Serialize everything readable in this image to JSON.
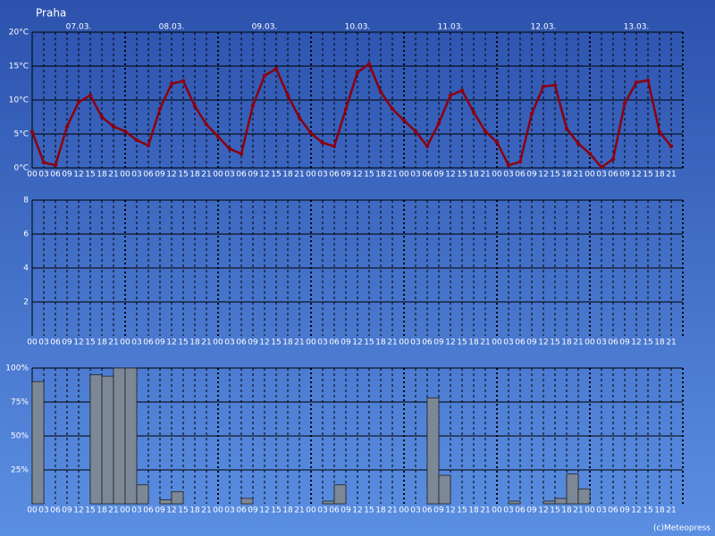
{
  "title": "Praha",
  "credit": "(c)Meteopress",
  "chart_data": [
    {
      "type": "line",
      "color": "#8b0010",
      "days": [
        "07.03.",
        "08.03.",
        "09.03.",
        "10.03.",
        "11.03.",
        "12.03.",
        "13.03."
      ],
      "categories": [
        "00",
        "03",
        "06",
        "09",
        "12",
        "15",
        "18",
        "21",
        "00",
        "03",
        "06",
        "09",
        "12",
        "15",
        "18",
        "21",
        "00",
        "03",
        "06",
        "09",
        "12",
        "15",
        "18",
        "21",
        "00",
        "03",
        "06",
        "09",
        "12",
        "15",
        "18",
        "21",
        "00",
        "03",
        "06",
        "09",
        "12",
        "15",
        "18",
        "21",
        "00",
        "03",
        "06",
        "09",
        "12",
        "15",
        "18",
        "21",
        "00",
        "03",
        "06",
        "09",
        "12",
        "15",
        "18",
        "21"
      ],
      "values": [
        5.3,
        0.8,
        0.4,
        6.1,
        9.7,
        10.7,
        7.5,
        6.1,
        5.4,
        4.1,
        3.3,
        8.7,
        12.4,
        12.8,
        9.1,
        6.4,
        4.6,
        2.8,
        2.1,
        9.2,
        13.6,
        14.6,
        10.7,
        7.4,
        5.1,
        3.7,
        3.2,
        8.7,
        14.1,
        15.3,
        11.2,
        8.7,
        7.0,
        5.4,
        3.2,
        6.6,
        10.7,
        11.4,
        8.2,
        5.4,
        3.8,
        0.4,
        0.9,
        8.0,
        12.0,
        12.2,
        5.8,
        3.6,
        2.1,
        0.1,
        1.3,
        9.5,
        12.6,
        12.9,
        5.3,
        3.2
      ],
      "ylim": [
        0,
        20
      ],
      "yticks": [
        {
          "value": 0,
          "label": "0°C"
        },
        {
          "value": 5,
          "label": "5°C"
        },
        {
          "value": 10,
          "label": "10°C"
        },
        {
          "value": 15,
          "label": "15°C"
        },
        {
          "value": 20,
          "label": "20°C"
        }
      ]
    },
    {
      "type": "bar",
      "categories": [
        "00",
        "03",
        "06",
        "09",
        "12",
        "15",
        "18",
        "21",
        "00",
        "03",
        "06",
        "09",
        "12",
        "15",
        "18",
        "21",
        "00",
        "03",
        "06",
        "09",
        "12",
        "15",
        "18",
        "21",
        "00",
        "03",
        "06",
        "09",
        "12",
        "15",
        "18",
        "21",
        "00",
        "03",
        "06",
        "09",
        "12",
        "15",
        "18",
        "21",
        "00",
        "03",
        "06",
        "09",
        "12",
        "15",
        "18",
        "21",
        "00",
        "03",
        "06",
        "09",
        "12",
        "15",
        "18",
        "21"
      ],
      "values": [
        0,
        0,
        0,
        0,
        0,
        0,
        0,
        0,
        0,
        0,
        0,
        0,
        0,
        0,
        0,
        0,
        0,
        0,
        0,
        0,
        0,
        0,
        0,
        0,
        0,
        0,
        0,
        0,
        0,
        0,
        0,
        0,
        0,
        0,
        0,
        0,
        0,
        0,
        0,
        0,
        0,
        0,
        0,
        0,
        0,
        0,
        0,
        0,
        0,
        0,
        0,
        0,
        0,
        0,
        0,
        0
      ],
      "ylim": [
        0,
        8
      ],
      "yticks": [
        2,
        4,
        6,
        8
      ]
    },
    {
      "type": "bar",
      "color": "#7d8897",
      "categories": [
        "00",
        "03",
        "06",
        "09",
        "12",
        "15",
        "18",
        "21",
        "00",
        "03",
        "06",
        "09",
        "12",
        "15",
        "18",
        "21",
        "00",
        "03",
        "06",
        "09",
        "12",
        "15",
        "18",
        "21",
        "00",
        "03",
        "06",
        "09",
        "12",
        "15",
        "18",
        "21",
        "00",
        "03",
        "06",
        "09",
        "12",
        "15",
        "18",
        "21",
        "00",
        "03",
        "06",
        "09",
        "12",
        "15",
        "18",
        "21",
        "00",
        "03",
        "06",
        "09",
        "12",
        "15",
        "18",
        "21"
      ],
      "values": [
        90,
        0,
        0,
        0,
        0,
        95,
        94,
        100,
        100,
        14,
        0,
        3,
        9,
        0,
        0,
        0,
        0,
        0,
        4,
        0,
        0,
        0,
        0,
        0,
        0,
        2,
        14,
        0,
        0,
        0,
        0,
        0,
        0,
        0,
        78,
        21,
        0,
        0,
        0,
        0,
        0,
        2,
        0,
        0,
        2,
        4,
        22,
        11,
        0,
        0,
        0,
        0,
        0,
        0,
        0,
        0
      ],
      "ylim": [
        0,
        100
      ],
      "yticks": [
        {
          "value": 25,
          "label": "25%"
        },
        {
          "value": 50,
          "label": "50%"
        },
        {
          "value": 75,
          "label": "75%"
        },
        {
          "value": 100,
          "label": "100%"
        }
      ]
    }
  ]
}
